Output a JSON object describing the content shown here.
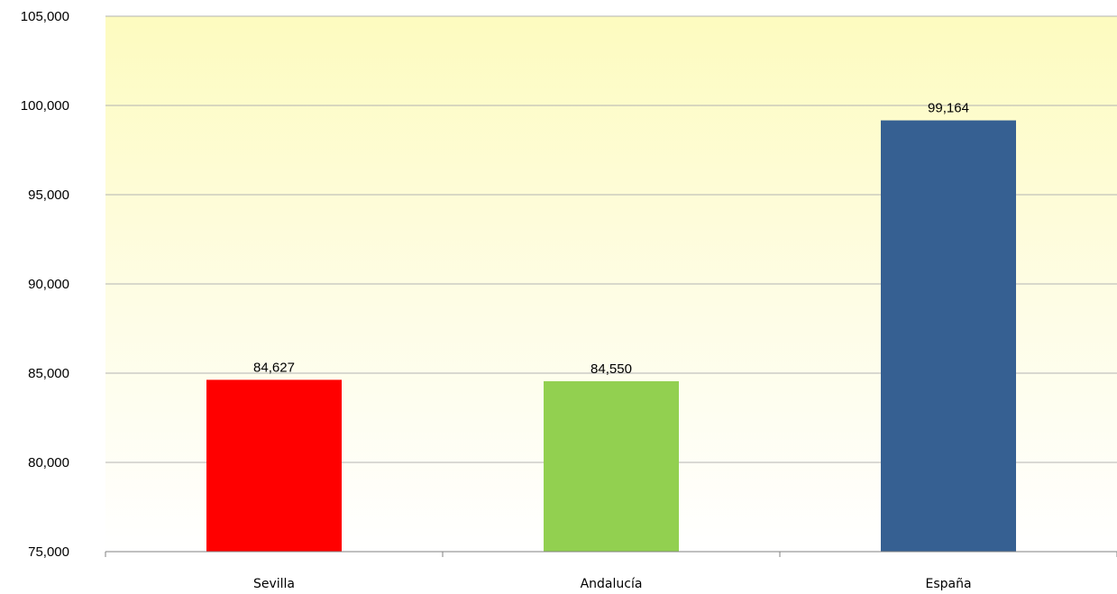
{
  "chart_data": {
    "type": "bar",
    "categories": [
      "Sevilla",
      "Andalucía",
      "España"
    ],
    "values": [
      84627,
      84550,
      99164
    ],
    "value_labels": [
      "84,627",
      "84,550",
      "99,164"
    ],
    "colors": [
      "#ff0000",
      "#92d050",
      "#366092"
    ],
    "ylim": [
      75000,
      105000
    ],
    "yticks": [
      75000,
      80000,
      85000,
      90000,
      95000,
      100000,
      105000
    ],
    "ytick_labels": [
      "75,000",
      "80,000",
      "85,000",
      "90,000",
      "95,000",
      "100,000",
      "105,000"
    ],
    "grid": true,
    "plot_background": "gradient yellow to white",
    "title": "",
    "xlabel": "",
    "ylabel": ""
  }
}
